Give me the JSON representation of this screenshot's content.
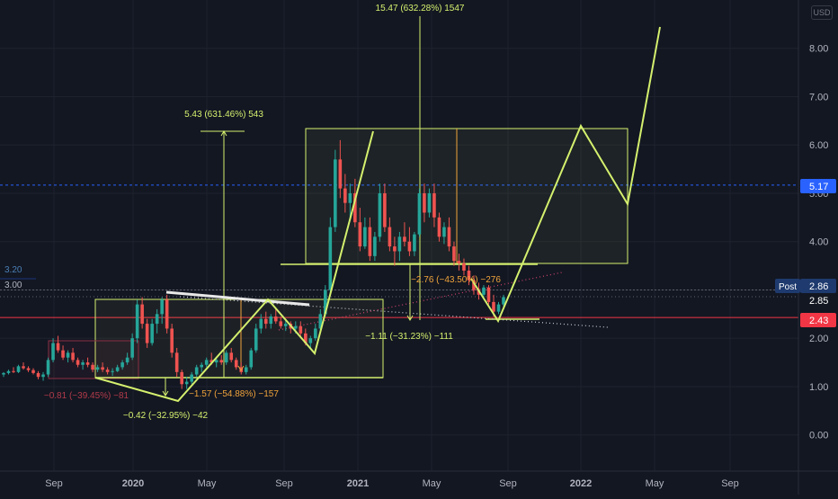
{
  "currency": "USD",
  "colors": {
    "background": "#131722",
    "grid": "#1e222d",
    "up": "#26a69a",
    "down": "#ef5350",
    "drawing": "#d4f06e",
    "orange": "#f0a33b",
    "red_line": "#f23645",
    "blue_dash": "#2962ff",
    "white_line": "#e8e8e8"
  },
  "chart_data": {
    "type": "candlestick",
    "y_axis": {
      "ticks": [
        "0.00",
        "1.00",
        "2.00",
        "3.00",
        "4.00",
        "5.00",
        "6.00",
        "7.00",
        "8.00"
      ],
      "range": [
        -0.75,
        9.0
      ]
    },
    "x_axis": {
      "ticks": [
        "Sep",
        "2020",
        "May",
        "Sep",
        "2021",
        "May",
        "Sep",
        "2022",
        "May",
        "Sep"
      ]
    },
    "price_labels": [
      {
        "value": 5.17,
        "text": "5.17",
        "color": "#2962ff"
      },
      {
        "value": 2.86,
        "text": "2.86",
        "prefix": "Post",
        "color": "#1e3a6e"
      },
      {
        "value": 2.85,
        "text": "2.85",
        "color": "#131722"
      },
      {
        "value": 2.43,
        "text": "2.43",
        "color": "#f23645"
      }
    ],
    "left_labels": [
      {
        "text": "3.20",
        "value": 3.2
      },
      {
        "text": "3.00",
        "value": 3.0
      }
    ],
    "annotations": [
      {
        "text": "15.47 (632.28%) 1547",
        "color": "#d4f06e"
      },
      {
        "text": "5.43 (631.46%) 543",
        "color": "#d4f06e"
      },
      {
        "text": "−2.76 (−43.50%) −276",
        "color": "#f0a33b"
      },
      {
        "text": "−1.11 (−31.23%) −111",
        "color": "#d4f06e"
      },
      {
        "text": "−1.57 (−54.88%) −157",
        "color": "#f0a33b"
      },
      {
        "text": "−0.42 (−32.95%) −42",
        "color": "#d4f06e"
      },
      {
        "text": "−0.81 (−39.45%) −81",
        "color": "#b33a4a"
      }
    ],
    "series": [
      {
        "name": "",
        "values": [
          [
            1.25,
            1.3,
            1.2,
            1.28
          ],
          [
            1.28,
            1.35,
            1.25,
            1.32
          ],
          [
            1.32,
            1.4,
            1.28,
            1.3
          ],
          [
            1.3,
            1.45,
            1.28,
            1.42
          ],
          [
            1.42,
            1.5,
            1.35,
            1.38
          ],
          [
            1.38,
            1.42,
            1.3,
            1.34
          ],
          [
            1.34,
            1.38,
            1.25,
            1.28
          ],
          [
            1.28,
            1.32,
            1.15,
            1.2
          ],
          [
            1.2,
            1.3,
            1.12,
            1.25
          ],
          [
            1.25,
            1.6,
            1.2,
            1.55
          ],
          [
            1.55,
            2.0,
            1.5,
            1.9
          ],
          [
            1.9,
            2.05,
            1.7,
            1.75
          ],
          [
            1.75,
            1.85,
            1.55,
            1.6
          ],
          [
            1.6,
            1.75,
            1.5,
            1.7
          ],
          [
            1.7,
            1.8,
            1.5,
            1.55
          ],
          [
            1.55,
            1.6,
            1.4,
            1.45
          ],
          [
            1.45,
            1.55,
            1.35,
            1.5
          ],
          [
            1.5,
            1.6,
            1.4,
            1.45
          ],
          [
            1.45,
            1.5,
            1.3,
            1.35
          ],
          [
            1.35,
            1.45,
            1.3,
            1.4
          ],
          [
            1.4,
            1.5,
            1.3,
            1.35
          ],
          [
            1.35,
            1.4,
            1.25,
            1.3
          ],
          [
            1.3,
            1.38,
            1.22,
            1.32
          ],
          [
            1.32,
            1.45,
            1.3,
            1.4
          ],
          [
            1.4,
            1.55,
            1.35,
            1.5
          ],
          [
            1.5,
            1.7,
            1.45,
            1.6
          ],
          [
            1.6,
            2.1,
            1.55,
            2.0
          ],
          [
            2.0,
            2.8,
            1.9,
            2.7
          ],
          [
            2.7,
            2.85,
            2.2,
            2.3
          ],
          [
            2.3,
            2.4,
            1.8,
            1.9
          ],
          [
            1.9,
            2.4,
            1.85,
            2.3
          ],
          [
            2.3,
            2.6,
            2.1,
            2.5
          ],
          [
            2.5,
            2.85,
            2.3,
            2.8
          ],
          [
            2.8,
            2.9,
            2.1,
            2.2
          ],
          [
            2.2,
            2.3,
            1.6,
            1.7
          ],
          [
            1.7,
            1.8,
            1.2,
            1.3
          ],
          [
            1.3,
            1.35,
            0.95,
            1.05
          ],
          [
            1.05,
            1.2,
            0.95,
            1.1
          ],
          [
            1.1,
            1.3,
            1.05,
            1.25
          ],
          [
            1.25,
            1.45,
            1.2,
            1.4
          ],
          [
            1.4,
            1.5,
            1.3,
            1.45
          ],
          [
            1.45,
            1.6,
            1.4,
            1.55
          ],
          [
            1.55,
            1.7,
            1.45,
            1.5
          ],
          [
            1.5,
            1.6,
            1.4,
            1.55
          ],
          [
            1.55,
            1.65,
            1.45,
            1.5
          ],
          [
            1.5,
            1.75,
            1.45,
            1.7
          ],
          [
            1.7,
            1.8,
            1.5,
            1.55
          ],
          [
            1.55,
            1.6,
            1.35,
            1.4
          ],
          [
            1.4,
            1.5,
            1.25,
            1.3
          ],
          [
            1.3,
            1.45,
            1.25,
            1.4
          ],
          [
            1.4,
            1.8,
            1.35,
            1.75
          ],
          [
            1.75,
            2.3,
            1.7,
            2.2
          ],
          [
            2.2,
            2.5,
            2.1,
            2.4
          ],
          [
            2.4,
            2.55,
            2.2,
            2.3
          ],
          [
            2.3,
            2.5,
            2.2,
            2.45
          ],
          [
            2.45,
            2.6,
            2.3,
            2.35
          ],
          [
            2.35,
            2.45,
            2.2,
            2.25
          ],
          [
            2.25,
            2.4,
            2.15,
            2.3
          ],
          [
            2.3,
            2.35,
            2.1,
            2.2
          ],
          [
            2.2,
            2.35,
            2.1,
            2.25
          ],
          [
            2.25,
            2.35,
            2.05,
            2.1
          ],
          [
            2.1,
            2.2,
            1.85,
            1.9
          ],
          [
            1.9,
            2.05,
            1.8,
            2.0
          ],
          [
            2.0,
            2.3,
            1.95,
            2.2
          ],
          [
            2.2,
            2.6,
            2.15,
            2.5
          ],
          [
            2.5,
            3.1,
            2.45,
            3.0
          ],
          [
            3.0,
            4.5,
            2.9,
            4.3
          ],
          [
            4.3,
            5.9,
            4.2,
            5.7
          ],
          [
            5.7,
            6.1,
            4.9,
            5.1
          ],
          [
            5.1,
            5.4,
            4.6,
            4.8
          ],
          [
            4.8,
            5.2,
            4.5,
            5.0
          ],
          [
            5.0,
            5.3,
            4.3,
            4.4
          ],
          [
            4.4,
            4.7,
            3.8,
            3.9
          ],
          [
            3.9,
            4.5,
            3.85,
            4.3
          ],
          [
            4.3,
            4.5,
            3.6,
            3.7
          ],
          [
            3.7,
            4.2,
            3.6,
            4.1
          ],
          [
            4.1,
            5.2,
            4.0,
            5.0
          ],
          [
            5.0,
            5.2,
            4.2,
            4.3
          ],
          [
            4.3,
            4.5,
            3.8,
            3.9
          ],
          [
            3.9,
            4.1,
            3.5,
            3.8
          ],
          [
            3.8,
            4.2,
            3.6,
            4.1
          ],
          [
            4.1,
            4.4,
            3.9,
            4.0
          ],
          [
            4.0,
            4.3,
            3.7,
            3.8
          ],
          [
            3.8,
            4.2,
            3.7,
            4.15
          ],
          [
            4.15,
            5.1,
            4.1,
            5.0
          ],
          [
            5.0,
            5.2,
            4.4,
            4.6
          ],
          [
            4.6,
            5.1,
            4.5,
            5.0
          ],
          [
            5.0,
            5.2,
            4.3,
            4.5
          ],
          [
            4.5,
            4.6,
            4.0,
            4.1
          ],
          [
            4.1,
            4.4,
            3.95,
            4.3
          ],
          [
            4.3,
            4.5,
            3.8,
            3.9
          ],
          [
            3.9,
            4.0,
            3.5,
            3.6
          ],
          [
            3.6,
            3.75,
            3.4,
            3.55
          ],
          [
            3.55,
            3.65,
            3.3,
            3.4
          ],
          [
            3.4,
            3.5,
            3.1,
            3.2
          ],
          [
            3.2,
            3.3,
            2.9,
            3.0
          ],
          [
            3.0,
            3.15,
            2.8,
            2.9
          ],
          [
            2.9,
            3.1,
            2.8,
            3.05
          ],
          [
            3.05,
            3.1,
            2.7,
            2.75
          ],
          [
            2.75,
            2.9,
            2.45,
            2.55
          ],
          [
            2.55,
            2.75,
            2.5,
            2.7
          ],
          [
            2.7,
            2.9,
            2.65,
            2.85
          ]
        ]
      }
    ]
  }
}
